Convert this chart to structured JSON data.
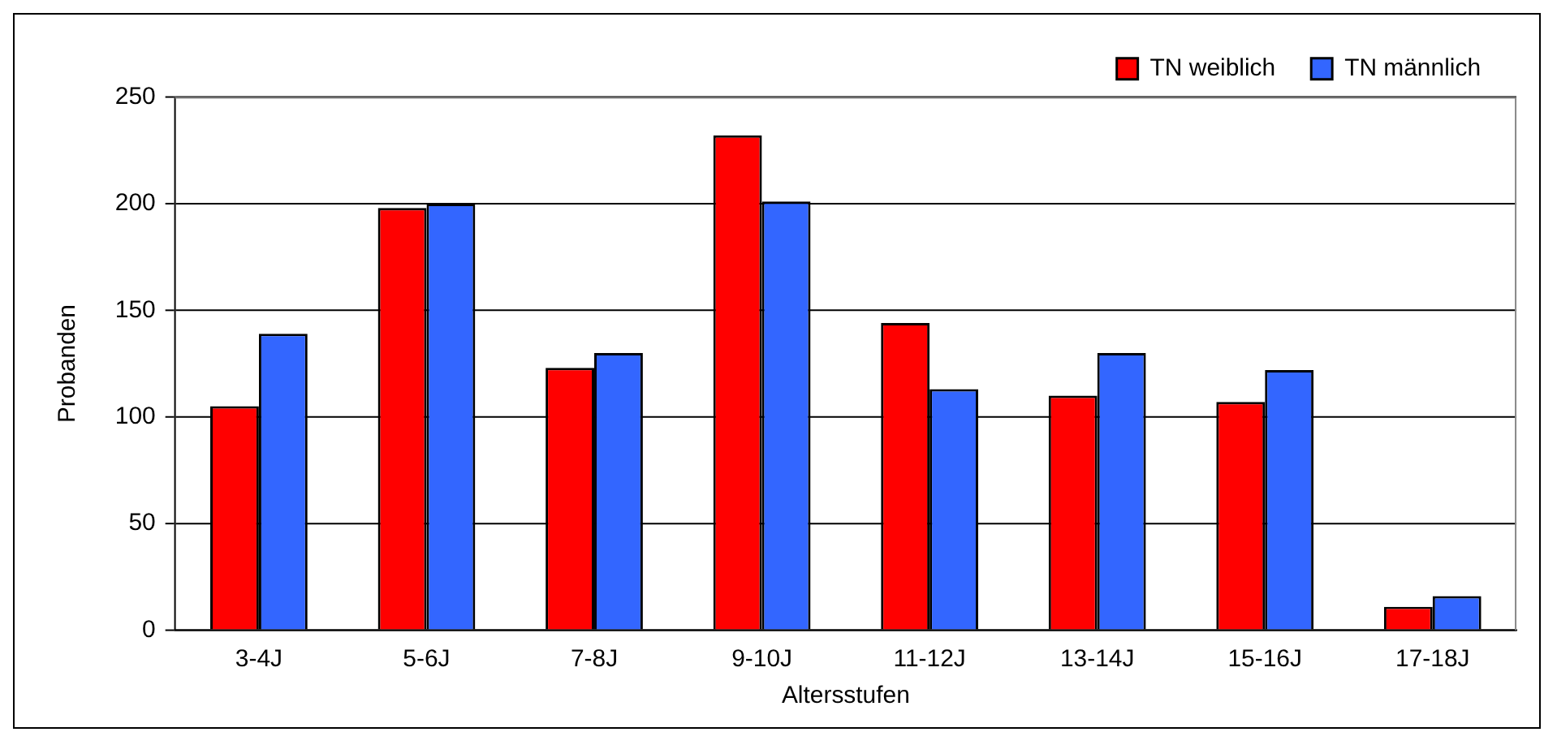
{
  "chart_data": {
    "type": "bar",
    "xlabel": "Altersstufen",
    "ylabel": "Probanden",
    "categories": [
      "3-4J",
      "5-6J",
      "7-8J",
      "9-10J",
      "11-12J",
      "13-14J",
      "15-16J",
      "17-18J"
    ],
    "series": [
      {
        "name": "TN weiblich",
        "color": "#ff0000",
        "values": [
          105,
          198,
          123,
          232,
          144,
          110,
          107,
          11
        ]
      },
      {
        "name": "TN männlich",
        "color": "#3366ff",
        "values": [
          139,
          200,
          130,
          201,
          113,
          130,
          122,
          16
        ]
      }
    ],
    "ylim": [
      0,
      250
    ],
    "yticks": [
      0,
      50,
      100,
      150,
      200,
      250
    ],
    "grid": "y",
    "legend": "top right"
  }
}
